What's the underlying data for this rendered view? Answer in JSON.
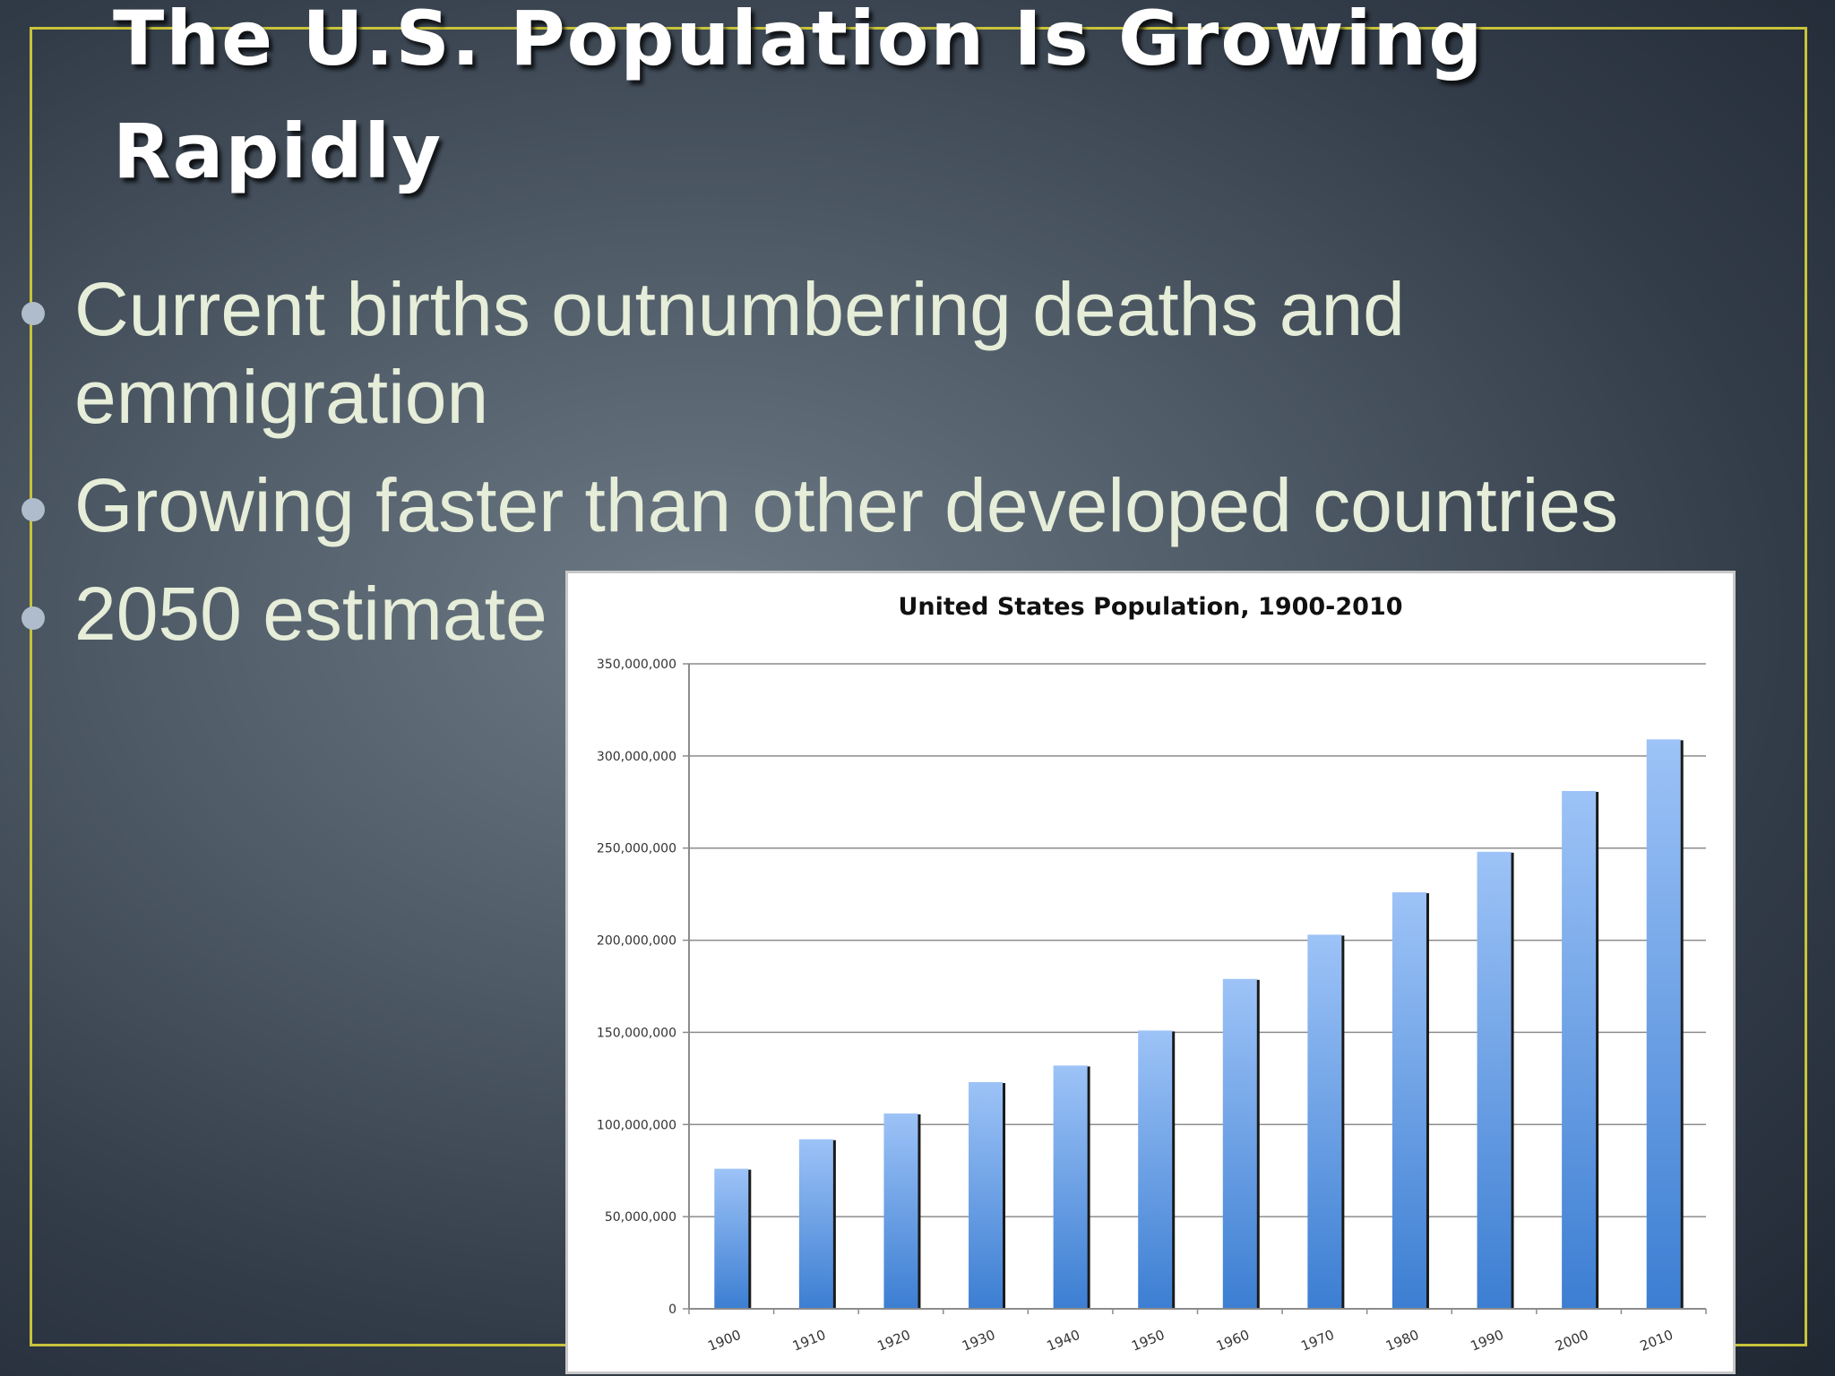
{
  "slide": {
    "title": "The U.S. Population Is Growing Rapidly",
    "bullets": [
      "Current births outnumbering deaths and emmigration",
      "Growing faster than other developed countries",
      "2050 estimate"
    ],
    "colors": {
      "frame": "#c9c33a",
      "title_text": "#ffffff",
      "bullet_text": "#e6edd8",
      "bar_top": "#9dc3f7",
      "bar_bottom": "#3c7ed2"
    }
  },
  "chart_data": {
    "type": "bar",
    "title": "United States Population, 1900-2010",
    "xlabel": "",
    "ylabel": "",
    "categories": [
      "1900",
      "1910",
      "1920",
      "1930",
      "1940",
      "1950",
      "1960",
      "1970",
      "1980",
      "1990",
      "2000",
      "2010"
    ],
    "values": [
      76000000,
      92000000,
      106000000,
      123000000,
      132000000,
      151000000,
      179000000,
      203000000,
      226000000,
      248000000,
      281000000,
      309000000
    ],
    "ylim": [
      0,
      350000000
    ],
    "yticks": [
      0,
      50000000,
      100000000,
      150000000,
      200000000,
      250000000,
      300000000,
      350000000
    ],
    "ytick_labels": [
      "0",
      "50,000,000",
      "100,000,000",
      "150,000,000",
      "200,000,000",
      "250,000,000",
      "300,000,000",
      "350,000,000"
    ],
    "grid": true,
    "legend": "none"
  }
}
